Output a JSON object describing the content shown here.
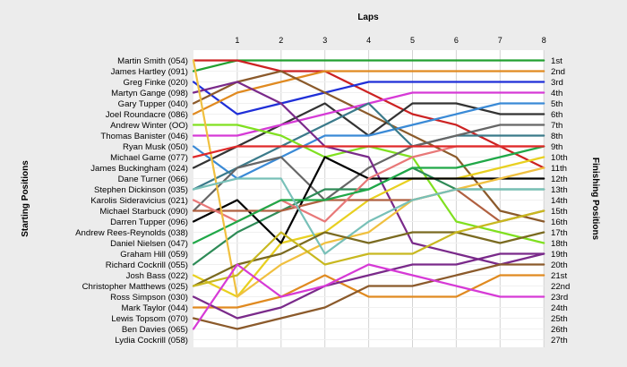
{
  "chart_data": {
    "type": "line",
    "title": "Laps",
    "ylabel_left": "Starting Positions",
    "ylabel_right": "Finishing Positions",
    "x": [
      0,
      1,
      2,
      3,
      4,
      5,
      6,
      7,
      8
    ],
    "x_tick_labels": [
      "1",
      "2",
      "3",
      "4",
      "5",
      "6",
      "7",
      "8"
    ],
    "position_range": [
      1,
      27
    ],
    "grid": "vertical lines at laps 1-8",
    "drivers": [
      "Martin Smith (054)",
      "James Hartley (091)",
      "Greg Finke (020)",
      "Martyn Gange (098)",
      "Gary Tupper (040)",
      "Joel Roundacre (086)",
      "Andrew Winter (OO)",
      "Thomas Banister (046)",
      "Ryan Musk (050)",
      "Michael Game (077)",
      "James Buckingham (024)",
      "Dane Turner (066)",
      "Stephen Dickinson (035)",
      "Karolis Sideravicius (021)",
      "Michael Starbuck (090)",
      "Darren Tupper (096)",
      "Andrew Rees-Reynolds (038)",
      "Daniel Nielsen (047)",
      "Graham Hill (059)",
      "Richard Cockrill (055)",
      "Josh Bass (022)",
      "Christopher Matthews (025)",
      "Ross Simpson (030)",
      "Mark Taylor (044)",
      "Lewis Topsom (070)",
      "Ben Davies (065)",
      "Lydia Cockrill (058)"
    ],
    "finishing_labels": [
      "1st",
      "2nd",
      "3rd",
      "4th",
      "5th",
      "6th",
      "7th",
      "8th",
      "9th",
      "10th",
      "11th",
      "12th",
      "13th",
      "14th",
      "15th",
      "16th",
      "17th",
      "18th",
      "19th",
      "20th",
      "21st",
      "22nd",
      "23rd",
      "24th",
      "25th",
      "26th",
      "27th"
    ],
    "series": [
      {
        "color": "#22a030",
        "values": [
          2,
          1,
          1,
          1,
          1,
          1,
          1,
          1,
          1
        ]
      },
      {
        "color": "#cc2222",
        "values": [
          1,
          1,
          2,
          2,
          4,
          6,
          7,
          9,
          11
        ]
      },
      {
        "color": "#1f2fd8",
        "values": [
          3,
          6,
          5,
          4,
          3,
          3,
          3,
          3,
          3
        ]
      },
      {
        "color": "#e08a20",
        "values": [
          6,
          4,
          3,
          2,
          2,
          2,
          2,
          2,
          2
        ]
      },
      {
        "color": "#8b5a2b",
        "values": [
          5,
          3,
          2,
          4,
          6,
          8,
          10,
          15,
          16
        ]
      },
      {
        "color": "#333333",
        "values": [
          11,
          9,
          7,
          5,
          8,
          5,
          5,
          6,
          6
        ]
      },
      {
        "color": "#3a8ad6",
        "values": [
          9,
          12,
          10,
          8,
          8,
          7,
          6,
          5,
          5
        ]
      },
      {
        "color": "#d63ad6",
        "values": [
          8,
          8,
          7,
          6,
          5,
          4,
          4,
          4,
          4
        ]
      },
      {
        "color": "#3a7a8a",
        "values": [
          13,
          11,
          9,
          7,
          5,
          9,
          8,
          8,
          8
        ]
      },
      {
        "color": "#80e020",
        "values": [
          7,
          7,
          8,
          10,
          9,
          10,
          16,
          17,
          18
        ]
      },
      {
        "color": "#666666",
        "values": [
          15,
          11,
          10,
          14,
          11,
          9,
          8,
          7,
          7
        ]
      },
      {
        "color": "#7a2a8a",
        "values": [
          4,
          3,
          5,
          9,
          10,
          18,
          19,
          20,
          19
        ]
      },
      {
        "color": "#e8d020",
        "values": [
          21,
          23,
          18,
          17,
          14,
          12,
          12,
          11,
          10
        ]
      },
      {
        "color": "#2e8b57",
        "values": [
          20,
          17,
          15,
          13,
          13,
          11,
          13,
          13,
          13
        ]
      },
      {
        "color": "#000000",
        "values": [
          16,
          14,
          18,
          10,
          12,
          12,
          12,
          12,
          12
        ]
      },
      {
        "color": "#b06040",
        "values": [
          15,
          15,
          15,
          14,
          14,
          14,
          13,
          16,
          15
        ]
      },
      {
        "color": "#e87878",
        "values": [
          14,
          16,
          14,
          16,
          12,
          10,
          9,
          9,
          9
        ]
      },
      {
        "color": "#20a848",
        "values": [
          18,
          16,
          14,
          14,
          13,
          11,
          11,
          10,
          9
        ]
      },
      {
        "color": "#f0c040",
        "values": [
          1,
          23,
          20,
          18,
          17,
          14,
          13,
          12,
          11
        ]
      },
      {
        "color": "#78c0b8",
        "values": [
          13,
          12,
          12,
          19,
          16,
          14,
          13,
          13,
          13
        ]
      },
      {
        "color": "#7a6a20",
        "values": [
          22,
          20,
          19,
          17,
          18,
          17,
          17,
          18,
          17
        ]
      },
      {
        "color": "#c8b820",
        "values": [
          22,
          21,
          17,
          20,
          19,
          19,
          17,
          16,
          15
        ]
      },
      {
        "color": "#e02a2a",
        "values": [
          10,
          9,
          9,
          9,
          9,
          9,
          9,
          9,
          9
        ]
      },
      {
        "color": "#e08a20",
        "values": [
          24,
          24,
          23,
          21,
          23,
          23,
          23,
          21,
          21
        ]
      },
      {
        "color": "#7a2a8a",
        "values": [
          23,
          25,
          24,
          22,
          21,
          20,
          20,
          19,
          19
        ]
      },
      {
        "color": "#8b5a2b",
        "values": [
          25,
          26,
          25,
          24,
          22,
          22,
          21,
          20,
          20
        ]
      },
      {
        "color": "#d63ad6",
        "values": [
          26,
          20,
          23,
          22,
          20,
          21,
          22,
          23,
          23
        ]
      }
    ]
  }
}
